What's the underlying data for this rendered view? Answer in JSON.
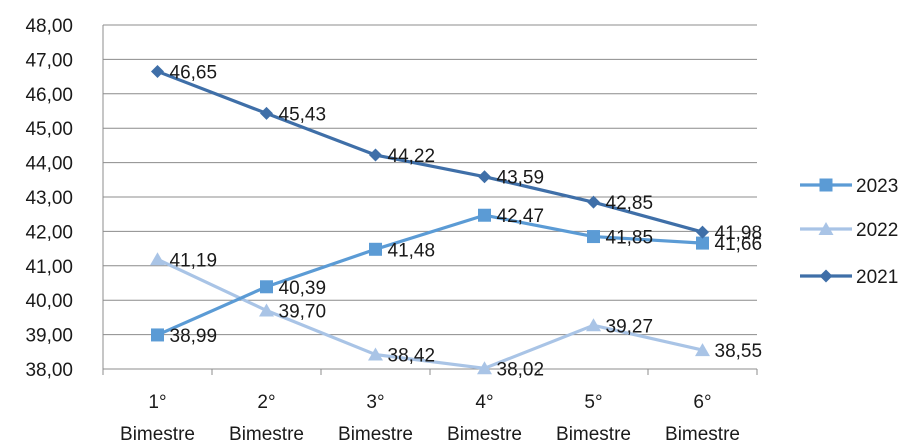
{
  "chart_data": {
    "type": "line",
    "categories": [
      "1° Bimestre",
      "2° Bimestre",
      "3° Bimestre",
      "4° Bimestre",
      "5° Bimestre",
      "6° Bimestre"
    ],
    "category_lines": [
      [
        "1°",
        "Bimestre"
      ],
      [
        "2°",
        "Bimestre"
      ],
      [
        "3°",
        "Bimestre"
      ],
      [
        "4°",
        "Bimestre"
      ],
      [
        "5°",
        "Bimestre"
      ],
      [
        "6°",
        "Bimestre"
      ]
    ],
    "ylim": [
      38,
      48
    ],
    "y_ticks": [
      "38,00",
      "39,00",
      "40,00",
      "41,00",
      "42,00",
      "43,00",
      "44,00",
      "45,00",
      "46,00",
      "47,00",
      "48,00"
    ],
    "grid": true,
    "legend_position": "right",
    "series": [
      {
        "name": "2023",
        "values": [
          38.99,
          40.39,
          41.48,
          42.47,
          41.85,
          41.66
        ],
        "labels": [
          "38,99",
          "40,39",
          "41,48",
          "42,47",
          "41,85",
          "41,66"
        ],
        "color": "#5b9bd5",
        "marker": "square"
      },
      {
        "name": "2022",
        "values": [
          41.19,
          39.7,
          38.42,
          38.02,
          39.27,
          38.55
        ],
        "labels": [
          "41,19",
          "39,70",
          "38,42",
          "38,02",
          "39,27",
          "38,55"
        ],
        "color": "#a9c4e6",
        "marker": "triangle"
      },
      {
        "name": "2021",
        "values": [
          46.65,
          45.43,
          44.22,
          43.59,
          42.85,
          41.98
        ],
        "labels": [
          "46,65",
          "45,43",
          "44,22",
          "43,59",
          "42,85",
          "41,98"
        ],
        "color": "#3f6fa8",
        "marker": "diamond"
      }
    ]
  }
}
